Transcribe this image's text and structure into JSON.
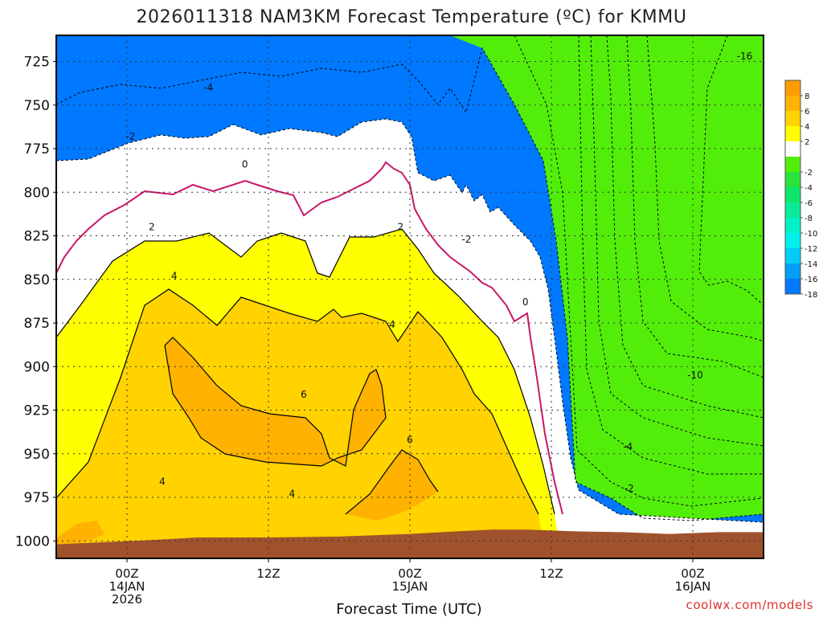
{
  "chart_data": {
    "type": "filled-contour",
    "title": "2026011318 NAM3KM Forecast Temperature (ºC) for KMMU",
    "xlabel": "Forecast Time (UTC)",
    "ylabel": "",
    "credit": "coolwx.com/models",
    "x_hours_range": [
      -6,
      54
    ],
    "y_range_hpa": [
      710,
      1010
    ],
    "y_ticks": [
      725,
      750,
      775,
      800,
      825,
      850,
      875,
      900,
      925,
      950,
      975,
      1000
    ],
    "x_ticks": [
      {
        "hour": 0,
        "lines": [
          "00Z",
          "14JAN",
          "2026"
        ]
      },
      {
        "hour": 12,
        "lines": [
          "12Z"
        ]
      },
      {
        "hour": 24,
        "lines": [
          "00Z",
          "15JAN"
        ]
      },
      {
        "hour": 36,
        "lines": [
          "12Z"
        ]
      },
      {
        "hour": 48,
        "lines": [
          "00Z",
          "16JAN"
        ]
      }
    ],
    "colorbar": {
      "ticks": [
        8,
        6,
        4,
        2,
        -2,
        -4,
        -6,
        -8,
        -10,
        -12,
        -14,
        -16,
        -18
      ],
      "bands": [
        {
          "min": 8,
          "max": 10,
          "color": "#ff9d00"
        },
        {
          "min": 6,
          "max": 8,
          "color": "#ffb200"
        },
        {
          "min": 4,
          "max": 6,
          "color": "#ffd200"
        },
        {
          "min": 2,
          "max": 4,
          "color": "#ffff00"
        },
        {
          "min": -2,
          "max": 2,
          "color": "#ffffff"
        },
        {
          "min": -4,
          "max": -2,
          "color": "#52ee0a"
        },
        {
          "min": -6,
          "max": -4,
          "color": "#2ae33c"
        },
        {
          "min": -8,
          "max": -6,
          "color": "#0ee66b"
        },
        {
          "min": -10,
          "max": -8,
          "color": "#0aeb98"
        },
        {
          "min": -12,
          "max": -10,
          "color": "#00f0c8"
        },
        {
          "min": -14,
          "max": -12,
          "color": "#00f0f0"
        },
        {
          "min": -16,
          "max": -14,
          "color": "#00ccf5"
        },
        {
          "min": -18,
          "max": -16,
          "color": "#009ef8"
        },
        {
          "min": -20,
          "max": -18,
          "color": "#0078ff"
        }
      ]
    },
    "terrain_color": "#a0522d",
    "freezing_line_color": "#c8176a",
    "terrain_pressure_hpa": [
      {
        "hour": -6,
        "p": 1002
      },
      {
        "hour": 2,
        "p": 999.5
      },
      {
        "hour": 6,
        "p": 998
      },
      {
        "hour": 12,
        "p": 998
      },
      {
        "hour": 18,
        "p": 997.5
      },
      {
        "hour": 24,
        "p": 996
      },
      {
        "hour": 28,
        "p": 994.5
      },
      {
        "hour": 31,
        "p": 993.5
      },
      {
        "hour": 34,
        "p": 993.5
      },
      {
        "hour": 38,
        "p": 994.5
      },
      {
        "hour": 42,
        "p": 995
      },
      {
        "hour": 46,
        "p": 996
      },
      {
        "hour": 50,
        "p": 995
      },
      {
        "hour": 54,
        "p": 995
      }
    ],
    "contour_labels": [
      {
        "text": "2",
        "hour": 2.1,
        "p": 820
      },
      {
        "text": "4",
        "hour": 4,
        "p": 848
      },
      {
        "text": "6",
        "hour": 15,
        "p": 916
      },
      {
        "text": "4",
        "hour": 3,
        "p": 966
      },
      {
        "text": "4",
        "hour": 14,
        "p": 973
      },
      {
        "text": "6",
        "hour": 24,
        "p": 942
      },
      {
        "text": "4",
        "hour": 22.5,
        "p": 876
      },
      {
        "text": "2",
        "hour": 23.2,
        "p": 820
      },
      {
        "text": "0",
        "hour": 10,
        "p": 784
      },
      {
        "text": "0",
        "hour": 33.8,
        "p": 863
      },
      {
        "text": "-2",
        "hour": 0.3,
        "p": 768
      },
      {
        "text": "-4",
        "hour": 6.9,
        "p": 740
      },
      {
        "text": "-2",
        "hour": 28.8,
        "p": 827
      },
      {
        "text": "-2",
        "hour": 42.6,
        "p": 970
      },
      {
        "text": "-4",
        "hour": 42.5,
        "p": 946
      },
      {
        "text": "-10",
        "hour": 48.2,
        "p": 905
      },
      {
        "text": "-16",
        "hour": 52.4,
        "p": 722
      }
    ]
  }
}
